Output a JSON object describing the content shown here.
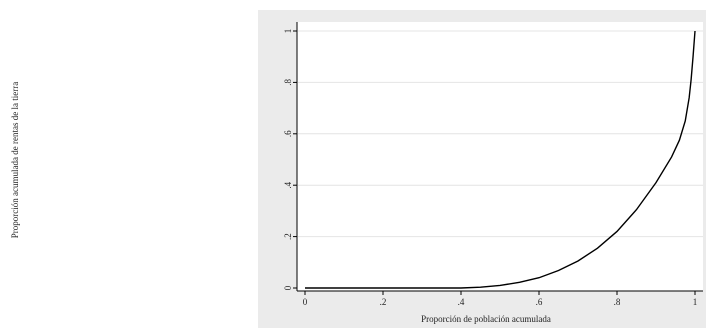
{
  "chart_data": {
    "type": "line",
    "title": "",
    "xlabel": "Proporción de población acumulada",
    "ylabel": "Proporción acumulada de rentas de la tierra",
    "xlim": [
      0,
      1
    ],
    "ylim": [
      0,
      1
    ],
    "grid": true,
    "x_ticks": [
      {
        "value": 0,
        "label": "0"
      },
      {
        "value": 0.2,
        "label": ".2"
      },
      {
        "value": 0.4,
        "label": ".4"
      },
      {
        "value": 0.6,
        "label": ".6"
      },
      {
        "value": 0.8,
        "label": ".8"
      },
      {
        "value": 1,
        "label": "1"
      }
    ],
    "y_ticks": [
      {
        "value": 0,
        "label": "0"
      },
      {
        "value": 0.2,
        "label": ".2"
      },
      {
        "value": 0.4,
        "label": ".4"
      },
      {
        "value": 0.6,
        "label": ".6"
      },
      {
        "value": 0.8,
        "label": ".8"
      },
      {
        "value": 1,
        "label": "1"
      }
    ],
    "series": [
      {
        "x": [
          0,
          0.1,
          0.2,
          0.3,
          0.4,
          0.45,
          0.5,
          0.55,
          0.6,
          0.65,
          0.7,
          0.75,
          0.8,
          0.85,
          0.9,
          0.94,
          0.96,
          0.975,
          0.985,
          0.99,
          0.995,
          1.0
        ],
        "y": [
          0,
          0,
          0,
          0,
          0,
          0.003,
          0.01,
          0.022,
          0.04,
          0.068,
          0.105,
          0.155,
          0.22,
          0.305,
          0.41,
          0.51,
          0.575,
          0.65,
          0.74,
          0.81,
          0.9,
          1.0
        ]
      }
    ],
    "colors": {
      "outer_background": "#ebebeb",
      "plot_background": "#ffffff",
      "gridline": "#e4e4e4",
      "axis": "#000000",
      "line": "#000000"
    }
  }
}
